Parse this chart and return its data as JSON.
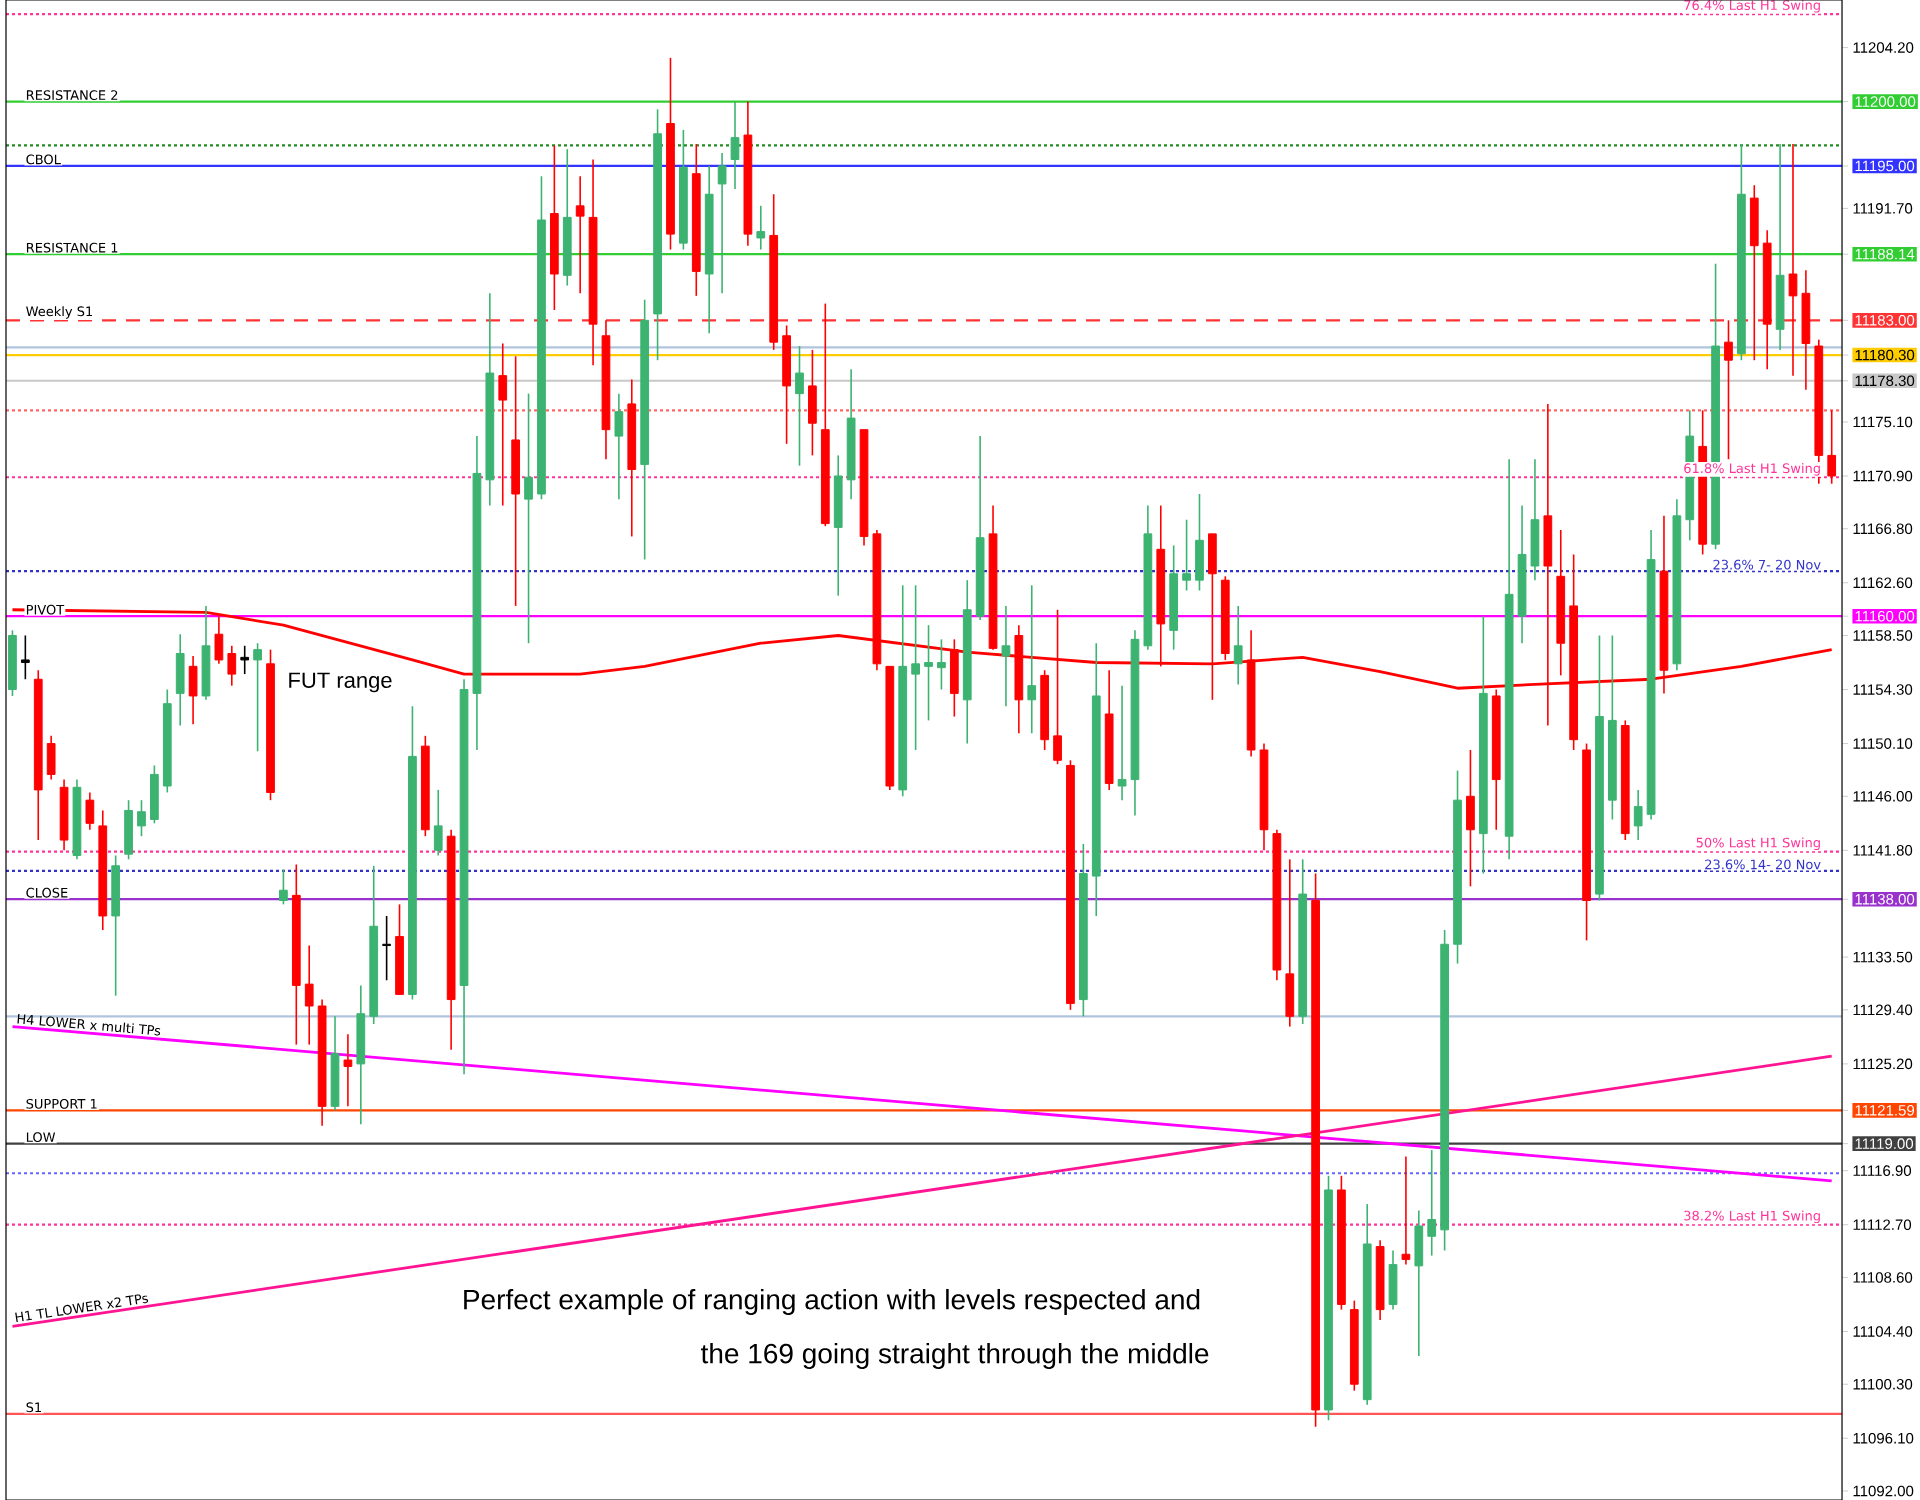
{
  "chart_data": {
    "type": "candlestick",
    "categories": [
      null,
      null,
      null,
      null,
      null,
      null,
      null,
      null,
      null,
      null,
      null,
      null,
      null,
      null,
      null,
      null,
      null,
      null,
      null,
      null,
      null,
      null,
      null,
      null,
      null,
      null,
      null,
      null,
      null,
      null,
      null,
      null,
      null,
      null,
      null,
      null,
      null,
      null,
      null,
      null,
      null,
      null,
      null,
      null,
      null,
      null,
      null,
      null,
      null,
      null,
      null,
      null,
      null,
      null,
      null,
      null,
      null,
      null,
      null,
      null,
      null,
      null,
      null,
      null,
      null,
      null,
      null,
      null,
      null,
      null,
      null,
      null,
      null,
      null,
      null,
      null,
      null,
      null,
      null,
      null,
      null,
      null,
      null,
      null,
      null,
      null,
      null,
      null,
      null,
      null,
      null,
      null,
      null,
      null,
      null,
      null,
      null,
      null,
      null,
      null,
      null,
      null,
      null,
      null,
      null,
      null,
      null,
      null,
      null,
      null,
      null,
      null,
      null,
      null,
      null,
      null,
      null,
      null,
      null,
      null,
      null,
      null,
      null,
      null,
      null,
      null,
      null,
      null,
      null,
      null,
      null,
      null,
      null,
      null,
      null,
      null,
      null,
      null,
      null,
      null,
      null,
      null
    ],
    "ohlc": [
      [
        11154.3,
        11158.9,
        11153.8,
        11158.5
      ],
      [
        11156.4,
        11158.5,
        11155.1,
        11156.6
      ],
      [
        11155.1,
        11155.8,
        11142.6,
        11146.5
      ],
      [
        11150.1,
        11150.7,
        11147.3,
        11147.7
      ],
      [
        11146.7,
        11147.3,
        11141.8,
        11142.6
      ],
      [
        11141.4,
        11147.3,
        11141.1,
        11146.7
      ],
      [
        11145.7,
        11146.3,
        11143.4,
        11143.9
      ],
      [
        11143.7,
        11144.9,
        11135.6,
        11136.7
      ],
      [
        11136.7,
        11141.4,
        11130.5,
        11140.6
      ],
      [
        11141.5,
        11145.7,
        11141.1,
        11144.9
      ],
      [
        11143.7,
        11145.7,
        11142.9,
        11144.8
      ],
      [
        11144.2,
        11148.4,
        11143.9,
        11147.7
      ],
      [
        11146.8,
        11154.3,
        11146.3,
        11153.2
      ],
      [
        11154.0,
        11158.6,
        11151.5,
        11157.1
      ],
      [
        11156.1,
        11156.9,
        11151.6,
        11153.8
      ],
      [
        11153.8,
        11160.8,
        11153.5,
        11157.7
      ],
      [
        11158.6,
        11160.0,
        11156.3,
        11156.6
      ],
      [
        11157.1,
        11157.7,
        11154.6,
        11155.5
      ],
      [
        11156.6,
        11157.7,
        11155.5,
        11156.8
      ],
      [
        11156.6,
        11157.9,
        11149.5,
        11157.4
      ],
      [
        11156.3,
        11157.4,
        11145.7,
        11146.3
      ],
      [
        11137.9,
        11140.3,
        11137.6,
        11138.7
      ],
      [
        11138.3,
        11140.7,
        11126.7,
        11131.3
      ],
      [
        11131.4,
        11134.4,
        11126.7,
        11129.7
      ],
      [
        11129.7,
        11130.2,
        11120.4,
        11121.9
      ],
      [
        11121.9,
        11128.9,
        11121.6,
        11126.0
      ],
      [
        11125.5,
        11127.5,
        11121.9,
        11125.0
      ],
      [
        11125.2,
        11131.3,
        11120.5,
        11129.1
      ],
      [
        11128.9,
        11140.6,
        11128.3,
        11135.9
      ],
      [
        11134.4,
        11136.7,
        11131.7,
        11134.5
      ],
      [
        11135.1,
        11137.6,
        11130.6,
        11130.6
      ],
      [
        11130.6,
        11153.0,
        11130.2,
        11149.1
      ],
      [
        11149.9,
        11150.7,
        11142.9,
        11143.4
      ],
      [
        11141.8,
        11146.5,
        11141.4,
        11143.7
      ],
      [
        11142.9,
        11143.4,
        11126.3,
        11130.2
      ],
      [
        11131.3,
        11155.1,
        11124.4,
        11154.3
      ],
      [
        11154.0,
        11174.0,
        11149.6,
        11171.1
      ],
      [
        11170.6,
        11185.1,
        11168.6,
        11178.9
      ],
      [
        11178.7,
        11181.2,
        11168.6,
        11176.8
      ],
      [
        11173.7,
        11180.2,
        11160.8,
        11169.5
      ],
      [
        11169.1,
        11177.3,
        11157.9,
        11170.8
      ],
      [
        11169.5,
        11194.2,
        11169.1,
        11190.8
      ],
      [
        11191.3,
        11196.6,
        11183.8,
        11186.6
      ],
      [
        11186.5,
        11196.3,
        11185.7,
        11191.0
      ],
      [
        11191.9,
        11194.2,
        11185.1,
        11191.1
      ],
      [
        11191.0,
        11195.5,
        11179.5,
        11182.7
      ],
      [
        11181.8,
        11183.0,
        11172.2,
        11174.5
      ],
      [
        11174.0,
        11177.3,
        11169.1,
        11175.9
      ],
      [
        11176.5,
        11178.4,
        11166.2,
        11171.4
      ],
      [
        11171.8,
        11184.6,
        11164.4,
        11183.0
      ],
      [
        11183.5,
        11199.4,
        11179.9,
        11197.5
      ],
      [
        11198.3,
        11203.4,
        11188.5,
        11189.7
      ],
      [
        11189.0,
        11197.8,
        11188.5,
        11194.9
      ],
      [
        11194.4,
        11196.7,
        11184.9,
        11186.8
      ],
      [
        11186.6,
        11195.0,
        11182.0,
        11192.8
      ],
      [
        11193.6,
        11196.0,
        11185.1,
        11195.0
      ],
      [
        11195.5,
        11200.0,
        11193.2,
        11197.2
      ],
      [
        11197.4,
        11200.0,
        11188.8,
        11189.7
      ],
      [
        11189.4,
        11191.9,
        11188.5,
        11189.9
      ],
      [
        11189.6,
        11192.8,
        11180.7,
        11181.3
      ],
      [
        11181.8,
        11182.6,
        11173.4,
        11177.9
      ],
      [
        11177.3,
        11181.0,
        11171.7,
        11178.9
      ],
      [
        11177.9,
        11180.7,
        11172.5,
        11175.0
      ],
      [
        11174.5,
        11184.3,
        11167.0,
        11167.2
      ],
      [
        11166.9,
        11172.5,
        11161.6,
        11170.9
      ],
      [
        11170.6,
        11179.2,
        11169.1,
        11175.4
      ],
      [
        11174.5,
        11174.5,
        11165.5,
        11166.2
      ],
      [
        11166.4,
        11166.7,
        11155.8,
        11156.3
      ],
      [
        11156.1,
        11156.1,
        11146.5,
        11146.8
      ],
      [
        11146.5,
        11162.4,
        11146.0,
        11156.1
      ],
      [
        11155.5,
        11162.4,
        11149.6,
        11156.3
      ],
      [
        11156.1,
        11159.3,
        11151.9,
        11156.4
      ],
      [
        11156.0,
        11158.2,
        11154.3,
        11156.4
      ],
      [
        11157.4,
        11158.2,
        11152.2,
        11154.0
      ],
      [
        11153.5,
        11162.8,
        11150.1,
        11160.5
      ],
      [
        11160.0,
        11174.0,
        11159.7,
        11166.1
      ],
      [
        11166.4,
        11168.6,
        11157.4,
        11157.5
      ],
      [
        11156.9,
        11160.8,
        11153.0,
        11157.7
      ],
      [
        11158.5,
        11159.3,
        11150.9,
        11153.5
      ],
      [
        11153.5,
        11162.4,
        11150.9,
        11154.6
      ],
      [
        11155.4,
        11155.8,
        11149.6,
        11150.4
      ],
      [
        11150.7,
        11160.5,
        11148.5,
        11148.8
      ],
      [
        11148.4,
        11148.8,
        11129.4,
        11129.9
      ],
      [
        11130.2,
        11142.3,
        11128.9,
        11140.0
      ],
      [
        11139.8,
        11157.9,
        11136.7,
        11153.8
      ],
      [
        11152.4,
        11155.8,
        11146.5,
        11147.0
      ],
      [
        11146.8,
        11154.6,
        11145.7,
        11147.3
      ],
      [
        11147.3,
        11158.9,
        11144.5,
        11158.2
      ],
      [
        11157.7,
        11168.6,
        11157.4,
        11166.4
      ],
      [
        11165.2,
        11168.6,
        11156.1,
        11159.4
      ],
      [
        11158.9,
        11165.5,
        11157.4,
        11163.3
      ],
      [
        11162.8,
        11167.5,
        11162.0,
        11163.3
      ],
      [
        11162.8,
        11169.5,
        11162.0,
        11165.9
      ],
      [
        11166.4,
        11166.4,
        11153.5,
        11163.3
      ],
      [
        11162.8,
        11163.1,
        11156.6,
        11157.1
      ],
      [
        11156.3,
        11160.8,
        11154.7,
        11157.7
      ],
      [
        11156.6,
        11158.9,
        11149.1,
        11149.6
      ],
      [
        11149.6,
        11150.1,
        11141.8,
        11143.4
      ],
      [
        11143.1,
        11143.4,
        11131.7,
        11132.5
      ],
      [
        11132.2,
        11141.1,
        11128.1,
        11128.9
      ],
      [
        11128.9,
        11141.1,
        11128.3,
        11138.4
      ],
      [
        11137.9,
        11140.0,
        11097.0,
        11098.3
      ],
      [
        11098.3,
        11116.5,
        11097.5,
        11115.4
      ],
      [
        11115.4,
        11116.5,
        11106.1,
        11106.5
      ],
      [
        11106.1,
        11106.8,
        11099.8,
        11100.3
      ],
      [
        11099.1,
        11114.3,
        11098.7,
        11111.2
      ],
      [
        11111.0,
        11111.5,
        11105.3,
        11106.1
      ],
      [
        11106.5,
        11110.7,
        11106.1,
        11109.6
      ],
      [
        11110.4,
        11118.0,
        11109.6,
        11110.0
      ],
      [
        11109.5,
        11113.8,
        11102.5,
        11112.6
      ],
      [
        11111.8,
        11118.5,
        11110.3,
        11113.1
      ],
      [
        11112.3,
        11135.6,
        11110.7,
        11134.5
      ],
      [
        11134.5,
        11148.0,
        11133.0,
        11145.7
      ],
      [
        11146.0,
        11149.6,
        11139.0,
        11143.4
      ],
      [
        11143.1,
        11160.0,
        11140.0,
        11154.0
      ],
      [
        11153.8,
        11154.3,
        11143.4,
        11147.3
      ],
      [
        11142.9,
        11172.2,
        11141.1,
        11161.7
      ],
      [
        11160.0,
        11168.6,
        11157.9,
        11164.8
      ],
      [
        11163.9,
        11172.2,
        11162.8,
        11167.5
      ],
      [
        11167.8,
        11176.5,
        11151.5,
        11163.9
      ],
      [
        11163.1,
        11166.7,
        11155.4,
        11157.9
      ],
      [
        11160.8,
        11164.8,
        11149.6,
        11150.4
      ],
      [
        11149.6,
        11150.1,
        11134.8,
        11137.9
      ],
      [
        11138.4,
        11158.5,
        11137.9,
        11152.2
      ],
      [
        11145.7,
        11158.5,
        11144.2,
        11151.9
      ],
      [
        11151.5,
        11151.9,
        11142.6,
        11143.1
      ],
      [
        11143.7,
        11146.5,
        11142.6,
        11145.2
      ],
      [
        11144.6,
        11166.7,
        11144.2,
        11164.4
      ],
      [
        11163.5,
        11167.8,
        11154.0,
        11155.8
      ],
      [
        11156.3,
        11169.1,
        11155.8,
        11167.8
      ],
      [
        11167.5,
        11176.0,
        11165.9,
        11174.0
      ],
      [
        11173.2,
        11176.0,
        11164.8,
        11165.6
      ],
      [
        11165.6,
        11187.4,
        11165.2,
        11181.0
      ],
      [
        11181.3,
        11183.0,
        11172.2,
        11179.9
      ],
      [
        11180.4,
        11196.7,
        11179.9,
        11192.8
      ],
      [
        11192.5,
        11193.5,
        11179.9,
        11188.8
      ],
      [
        11189.0,
        11190.0,
        11179.2,
        11182.7
      ],
      [
        11182.3,
        11196.7,
        11180.7,
        11186.5
      ],
      [
        11186.6,
        11196.7,
        11178.7,
        11184.9
      ],
      [
        11185.1,
        11186.9,
        11177.6,
        11181.2
      ],
      [
        11181.0,
        11181.5,
        11170.3,
        11172.5
      ],
      [
        11172.5,
        11176.0,
        11170.3,
        11170.9
      ]
    ],
    "colors": [
      "#3cb371",
      "#000000",
      "#ff0000",
      "#ff0000",
      "#ff0000",
      "#3cb371",
      "#ff0000",
      "#ff0000",
      "#3cb371",
      "#3cb371",
      "#3cb371",
      "#3cb371",
      "#3cb371",
      "#3cb371",
      "#ff0000",
      "#3cb371",
      "#ff0000",
      "#ff0000",
      "#000000",
      "#3cb371",
      "#ff0000",
      "#3cb371",
      "#ff0000",
      "#ff0000",
      "#ff0000",
      "#3cb371",
      "#ff0000",
      "#3cb371",
      "#3cb371",
      "#000000",
      "#ff0000",
      "#3cb371",
      "#ff0000",
      "#3cb371",
      "#ff0000",
      "#3cb371",
      "#3cb371",
      "#3cb371",
      "#ff0000",
      "#ff0000",
      "#3cb371",
      "#3cb371",
      "#ff0000",
      "#3cb371",
      "#ff0000",
      "#ff0000",
      "#ff0000",
      "#3cb371",
      "#ff0000",
      "#3cb371",
      "#3cb371",
      "#ff0000",
      "#3cb371",
      "#ff0000",
      "#3cb371",
      "#3cb371",
      "#3cb371",
      "#ff0000",
      "#3cb371",
      "#ff0000",
      "#ff0000",
      "#3cb371",
      "#ff0000",
      "#ff0000",
      "#3cb371",
      "#3cb371",
      "#ff0000",
      "#ff0000",
      "#ff0000",
      "#3cb371",
      "#3cb371",
      "#3cb371",
      "#3cb371",
      "#ff0000",
      "#3cb371",
      "#3cb371",
      "#ff0000",
      "#3cb371",
      "#ff0000",
      "#3cb371",
      "#ff0000",
      "#ff0000",
      "#ff0000",
      "#3cb371",
      "#3cb371",
      "#ff0000",
      "#3cb371",
      "#3cb371",
      "#3cb371",
      "#ff0000",
      "#3cb371",
      "#3cb371",
      "#3cb371",
      "#ff0000",
      "#ff0000",
      "#3cb371",
      "#ff0000",
      "#ff0000",
      "#ff0000",
      "#ff0000",
      "#3cb371",
      "#ff0000",
      "#3cb371",
      "#ff0000",
      "#ff0000",
      "#3cb371",
      "#ff0000",
      "#3cb371",
      "#ff0000",
      "#3cb371",
      "#3cb371",
      "#3cb371",
      "#3cb371",
      "#ff0000",
      "#3cb371",
      "#ff0000",
      "#3cb371",
      "#3cb371",
      "#3cb371",
      "#ff0000",
      "#ff0000",
      "#ff0000",
      "#ff0000",
      "#3cb371",
      "#3cb371",
      "#ff0000",
      "#3cb371",
      "#3cb371",
      "#ff0000",
      "#3cb371",
      "#3cb371",
      "#ff0000",
      "#3cb371",
      "#ff0000",
      "#3cb371",
      "#ff0000",
      "#ff0000",
      "#3cb371",
      "#ff0000",
      "#ff0000",
      "#ff0000",
      "#ff0000"
    ],
    "series": [
      {
        "type": "line",
        "color": "#ff0000",
        "values": [
          11160.5,
          null,
          null,
          null,
          null,
          null,
          null,
          null,
          null,
          null,
          null,
          null,
          null,
          null,
          null,
          11160.3,
          null,
          null,
          null,
          null,
          null,
          11159.3,
          null,
          null,
          null,
          null,
          null,
          null,
          null,
          null,
          null,
          11156.6,
          null,
          null,
          null,
          11155.5,
          null,
          null,
          null,
          null,
          null,
          null,
          null,
          null,
          11155.5,
          null,
          null,
          null,
          null,
          11156.1,
          null,
          null,
          null,
          null,
          null,
          null,
          null,
          null,
          11157.9,
          null,
          null,
          null,
          null,
          null,
          11158.5,
          null,
          null,
          null,
          null,
          null,
          null,
          null,
          null,
          null,
          11157.2,
          null,
          null,
          null,
          null,
          null,
          null,
          null,
          null,
          null,
          11156.4,
          null,
          null,
          null,
          null,
          null,
          null,
          null,
          null,
          11156.3,
          null,
          null,
          null,
          null,
          null,
          null,
          11156.8,
          null,
          null,
          null,
          null,
          null,
          11155.7,
          null,
          null,
          null,
          null,
          null,
          11154.4,
          null,
          null,
          null,
          null,
          null,
          11154.7,
          null,
          null,
          null,
          null,
          null,
          null,
          null,
          null,
          11155.1,
          null,
          null,
          null,
          null,
          null,
          null,
          11156.1,
          null,
          null,
          null,
          null,
          null,
          null,
          11157.4
        ]
      },
      {
        "type": "line",
        "name": "H4 LOWER x multi TPs",
        "color": "#ff00ff",
        "values": [
          11128.1,
          null,
          null,
          null,
          null,
          null,
          null,
          null,
          null,
          null,
          null,
          null,
          null,
          null,
          null,
          null,
          null,
          null,
          null,
          null,
          null,
          null,
          null,
          null,
          null,
          null,
          null,
          null,
          null,
          null,
          null,
          null,
          null,
          null,
          null,
          null,
          null,
          null,
          null,
          null,
          null,
          null,
          null,
          null,
          null,
          null,
          null,
          null,
          null,
          null,
          null,
          null,
          null,
          null,
          null,
          null,
          null,
          null,
          null,
          null,
          null,
          null,
          null,
          null,
          null,
          null,
          null,
          null,
          null,
          null,
          null,
          null,
          null,
          null,
          null,
          null,
          null,
          null,
          null,
          null,
          null,
          null,
          null,
          null,
          null,
          null,
          null,
          null,
          null,
          null,
          null,
          null,
          null,
          null,
          null,
          null,
          null,
          null,
          null,
          null,
          null,
          null,
          null,
          null,
          null,
          null,
          null,
          null,
          null,
          null,
          null,
          null,
          null,
          null,
          null,
          null,
          null,
          null,
          null,
          null,
          null,
          null,
          null,
          null,
          null,
          null,
          null,
          null,
          null,
          null,
          null,
          null,
          null,
          null,
          null,
          null,
          null,
          null,
          null,
          null,
          null,
          11116.1
        ]
      },
      {
        "type": "line",
        "name": "H1 TL LOWER  x2 TPs",
        "color": "#ff1493",
        "values": [
          11104.8,
          null,
          null,
          null,
          null,
          null,
          null,
          null,
          null,
          null,
          null,
          null,
          null,
          null,
          null,
          null,
          null,
          null,
          null,
          null,
          null,
          null,
          null,
          null,
          null,
          null,
          null,
          null,
          null,
          null,
          null,
          null,
          null,
          null,
          null,
          null,
          null,
          null,
          null,
          null,
          null,
          null,
          null,
          null,
          null,
          null,
          null,
          null,
          null,
          null,
          null,
          null,
          null,
          null,
          null,
          null,
          null,
          null,
          null,
          null,
          null,
          null,
          null,
          null,
          null,
          null,
          null,
          null,
          null,
          null,
          null,
          null,
          null,
          null,
          null,
          null,
          null,
          null,
          null,
          null,
          null,
          null,
          null,
          null,
          null,
          null,
          null,
          null,
          null,
          null,
          null,
          null,
          null,
          null,
          null,
          null,
          null,
          null,
          null,
          null,
          null,
          null,
          null,
          null,
          null,
          null,
          null,
          null,
          null,
          null,
          null,
          null,
          null,
          null,
          null,
          null,
          null,
          null,
          null,
          null,
          null,
          null,
          null,
          null,
          null,
          null,
          null,
          null,
          null,
          null,
          null,
          null,
          null,
          null,
          null,
          null,
          null,
          null,
          null,
          null,
          null,
          11125.8
        ]
      }
    ],
    "ylim": [
      11091.3,
      11207.9
    ],
    "yticks": [
      {
        "value": 11204.2,
        "label": "11204.20"
      },
      {
        "value": 11200,
        "label": "11200.00"
      },
      {
        "value": 11195,
        "label": "11195.00"
      },
      {
        "value": 11191.7,
        "label": "11191.70"
      },
      {
        "value": 11188.14,
        "label": "11188.14"
      },
      {
        "value": 11183,
        "label": "11183.00"
      },
      {
        "value": 11180.3,
        "label": "11180.30"
      },
      {
        "value": 11178.3,
        "label": "11178.30"
      },
      {
        "value": 11175.1,
        "label": "11175.10"
      },
      {
        "value": 11170.9,
        "label": "11170.90"
      },
      {
        "value": 11166.8,
        "label": "11166.80"
      },
      {
        "value": 11162.6,
        "label": "11162.60"
      },
      {
        "value": 11160,
        "label": "11160.00"
      },
      {
        "value": 11158.5,
        "label": "11158.50"
      },
      {
        "value": 11154.3,
        "label": "11154.30"
      },
      {
        "value": 11150.1,
        "label": "11150.10"
      },
      {
        "value": 11146,
        "label": "11146.00"
      },
      {
        "value": 11141.8,
        "label": "11141.80"
      },
      {
        "value": 11138,
        "label": "11138.00"
      },
      {
        "value": 11133.5,
        "label": "11133.50"
      },
      {
        "value": 11129.4,
        "label": "11129.40"
      },
      {
        "value": 11125.2,
        "label": "11125.20"
      },
      {
        "value": 11121.59,
        "label": "11121.59"
      },
      {
        "value": 11119,
        "label": "11119.00"
      },
      {
        "value": 11116.9,
        "label": "11116.90"
      },
      {
        "value": 11112.7,
        "label": "11112.70"
      },
      {
        "value": 11108.6,
        "label": "11108.60"
      },
      {
        "value": 11104.4,
        "label": "11104.40"
      },
      {
        "value": 11100.3,
        "label": "11100.30"
      },
      {
        "value": 11096.1,
        "label": "11096.10"
      },
      {
        "value": 11092,
        "label": "11092.00"
      }
    ],
    "tick_labels": "y",
    "ref_lines": [
      {
        "axis": "y",
        "value": 11206.8,
        "label": "76.4%  Last H1 Swing",
        "color": "#ff3399",
        "line_style": "dotted"
      },
      {
        "axis": "y",
        "value": 11200,
        "label": "RESISTANCE 2",
        "color": "#32cd32",
        "line_style": "solid"
      },
      {
        "axis": "y",
        "value": 11196.6,
        "color": "#228b22",
        "line_style": "dotted"
      },
      {
        "axis": "y",
        "value": 11195,
        "label": "CBOL",
        "color": "#3333ff",
        "line_style": "solid"
      },
      {
        "axis": "y",
        "value": 11188.14,
        "label": "RESISTANCE 1",
        "color": "#32cd32",
        "line_style": "solid"
      },
      {
        "axis": "y",
        "value": 11183,
        "label": "Weekly S1",
        "color": "#ff3333",
        "line_style": "dashed"
      },
      {
        "axis": "y",
        "value": 11180.9,
        "color": "#b0c4de",
        "line_style": "solid"
      },
      {
        "axis": "y",
        "value": 11180.3,
        "color": "#ffcc00",
        "line_style": "solid"
      },
      {
        "axis": "y",
        "value": 11178.3,
        "color": "#c8c8c8",
        "line_style": "solid"
      },
      {
        "axis": "y",
        "value": 11176.0,
        "color": "#ff6666",
        "line_style": "dotted"
      },
      {
        "axis": "y",
        "value": 11170.8,
        "label": "61.8%  Last H1 Swing",
        "color": "#ff3399",
        "line_style": "dotted"
      },
      {
        "axis": "y",
        "value": 11163.5,
        "label": "23.6% 7- 20 Nov",
        "color": "#3333cc",
        "line_style": "dotted"
      },
      {
        "axis": "y",
        "value": 11160,
        "label": "PIVOT",
        "color": "#ff00ff",
        "line_style": "solid"
      },
      {
        "axis": "y",
        "value": 11141.7,
        "label": "50%    Last H1 Swing",
        "color": "#ff3399",
        "line_style": "dotted"
      },
      {
        "axis": "y",
        "value": 11140.2,
        "label": "23.6% 14- 20 Nov",
        "color": "#3333cc",
        "line_style": "dotted"
      },
      {
        "axis": "y",
        "value": 11138,
        "label": "CLOSE",
        "color": "#9932cc",
        "line_style": "solid"
      },
      {
        "axis": "y",
        "value": 11128.9,
        "color": "#b0c4de",
        "line_style": "solid"
      },
      {
        "axis": "y",
        "value": 11121.59,
        "label": "SUPPORT 1",
        "color": "#ff4500",
        "line_style": "solid"
      },
      {
        "axis": "y",
        "value": 11119,
        "label": "LOW",
        "color": "#404040",
        "line_style": "solid"
      },
      {
        "axis": "y",
        "value": 11116.7,
        "color": "#6666ff",
        "line_style": "dotted"
      },
      {
        "axis": "y",
        "value": 11112.7,
        "label": "38.2%  Last H1 Swing",
        "color": "#ff3399",
        "line_style": "dotted"
      },
      {
        "axis": "y",
        "value": 11098,
        "label": "S1",
        "color": "#ff5555",
        "line_style": "solid"
      }
    ],
    "annotations": [
      "FUT range",
      "Perfect example of ranging action with levels respected and",
      "the 169 going straight through the middle"
    ]
  }
}
